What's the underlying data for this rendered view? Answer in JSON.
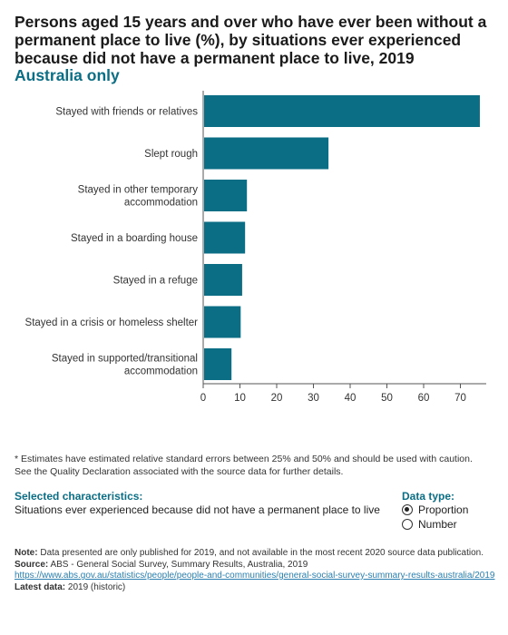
{
  "header": {
    "title": "Persons aged 15 years and over who have ever been without a permanent place to live (%), by situations ever experienced because did not have a permanent place to live, 2019",
    "subtitle": "Australia only"
  },
  "chart_data": {
    "type": "bar",
    "orientation": "horizontal",
    "categories": [
      "Stayed with friends or relatives",
      "Slept rough",
      "Stayed in other temporary accommodation",
      "Stayed in a boarding house",
      "Stayed in a refuge",
      "Stayed in a crisis or homeless shelter",
      "Stayed in supported/transitional accommodation"
    ],
    "category_lines": [
      [
        "Stayed with friends or relatives"
      ],
      [
        "Slept rough"
      ],
      [
        "Stayed in other temporary",
        "accommodation"
      ],
      [
        "Stayed in a boarding house"
      ],
      [
        "Stayed in a refuge"
      ],
      [
        "Stayed in a crisis or homeless shelter"
      ],
      [
        "Stayed in supported/transitional",
        "accommodation"
      ]
    ],
    "values": [
      75.3,
      34.1,
      11.9,
      11.4,
      10.6,
      10.2,
      7.7
    ],
    "xlim": [
      0,
      75
    ],
    "xticks": [
      0,
      10,
      20,
      30,
      40,
      50,
      60,
      70
    ],
    "bar_color": "#0b6e85",
    "grid": false
  },
  "footnote": {
    "line1": "* Estimates have estimated relative standard errors between 25% and 50% and should be used with caution.",
    "line2": "See the Quality Declaration associated with the source data for further details."
  },
  "selected": {
    "heading": "Selected characteristics:",
    "value": "Situations ever experienced because did not have a permanent place to live"
  },
  "data_type": {
    "heading": "Data type:",
    "options": [
      {
        "label": "Proportion",
        "checked": true
      },
      {
        "label": "Number",
        "checked": false
      }
    ]
  },
  "notes": {
    "note_label": "Note:",
    "note_text": "Data presented are only published for 2019, and not available in the most recent 2020 source data publication.",
    "source_label": "Source:",
    "source_text": "ABS - General Social Survey, Summary Results, Australia, 2019",
    "link": "https://www.abs.gov.au/statistics/people/people-and-communities/general-social-survey-summary-results-australia/2019",
    "latest_label": "Latest data:",
    "latest_text": "2019 (historic)"
  }
}
